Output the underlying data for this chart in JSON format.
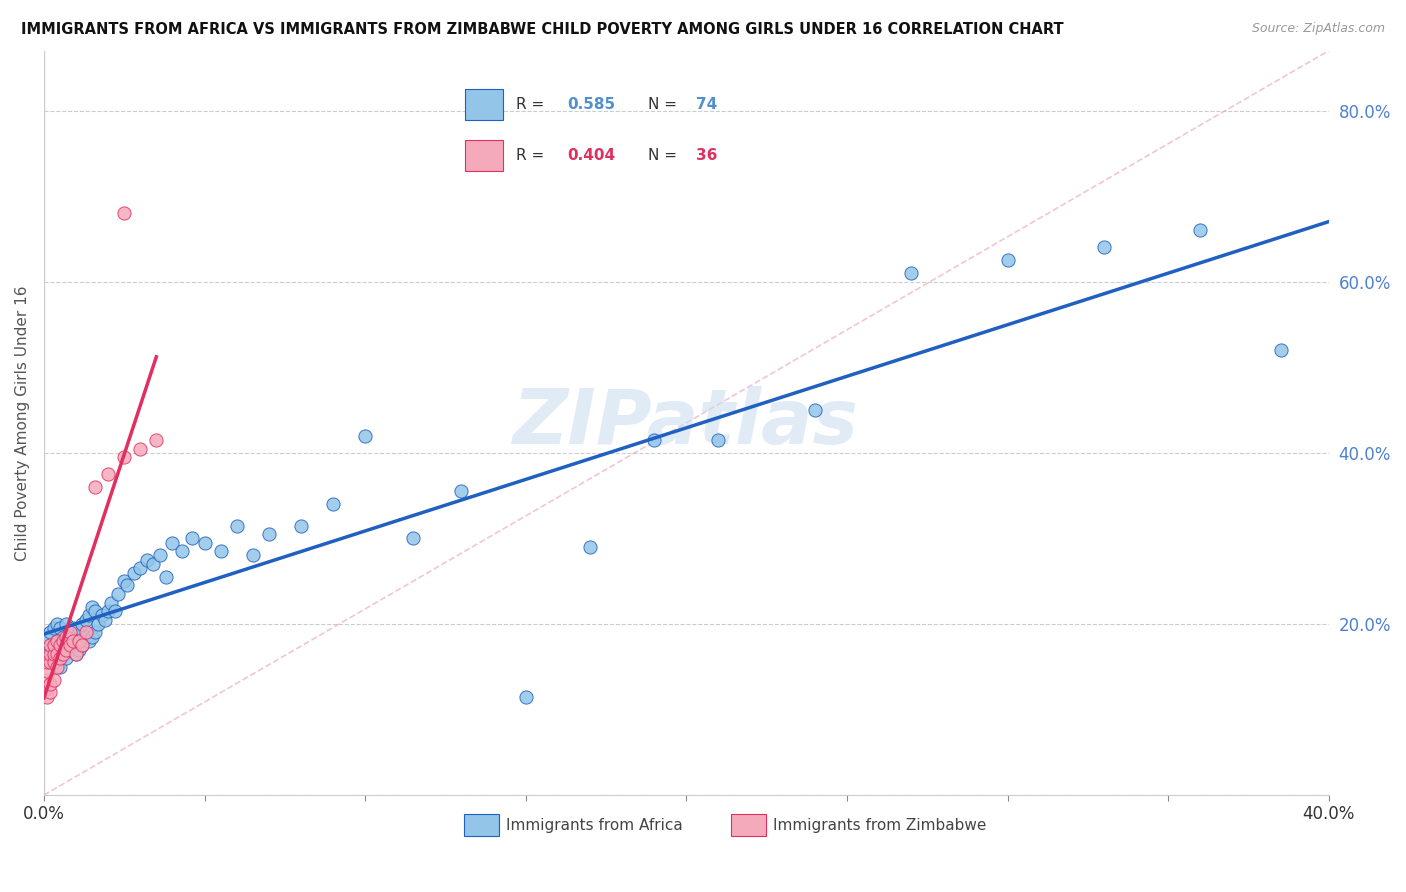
{
  "title": "IMMIGRANTS FROM AFRICA VS IMMIGRANTS FROM ZIMBABWE CHILD POVERTY AMONG GIRLS UNDER 16 CORRELATION CHART",
  "source": "Source: ZipAtlas.com",
  "ylabel": "Child Poverty Among Girls Under 16",
  "legend_labels": [
    "Immigrants from Africa",
    "Immigrants from Zimbabwe"
  ],
  "R_africa": 0.585,
  "N_africa": 74,
  "R_zimbabwe": 0.404,
  "N_zimbabwe": 36,
  "xlim": [
    0.0,
    0.4
  ],
  "ylim": [
    0.0,
    0.87
  ],
  "ytick_values": [
    0.0,
    0.2,
    0.4,
    0.6,
    0.8
  ],
  "ytick_labels": [
    "",
    "20.0%",
    "40.0%",
    "60.0%",
    "80.0%"
  ],
  "color_africa": "#92C5E8",
  "color_zimbabwe": "#F5AABB",
  "line_africa": "#2060C0",
  "line_zimbabwe": "#E03060",
  "ref_line_color": "#E8B0C0",
  "bg_color": "#FFFFFF",
  "watermark": "ZIPatlas",
  "africa_x": [
    0.001,
    0.001,
    0.002,
    0.002,
    0.003,
    0.003,
    0.003,
    0.004,
    0.004,
    0.004,
    0.005,
    0.005,
    0.005,
    0.006,
    0.006,
    0.007,
    0.007,
    0.007,
    0.008,
    0.008,
    0.009,
    0.009,
    0.01,
    0.01,
    0.011,
    0.011,
    0.012,
    0.012,
    0.013,
    0.013,
    0.014,
    0.014,
    0.015,
    0.015,
    0.016,
    0.016,
    0.017,
    0.018,
    0.019,
    0.02,
    0.021,
    0.022,
    0.023,
    0.025,
    0.026,
    0.028,
    0.03,
    0.032,
    0.034,
    0.036,
    0.038,
    0.04,
    0.043,
    0.046,
    0.05,
    0.055,
    0.06,
    0.065,
    0.07,
    0.08,
    0.09,
    0.1,
    0.115,
    0.13,
    0.15,
    0.17,
    0.19,
    0.21,
    0.24,
    0.27,
    0.3,
    0.33,
    0.36,
    0.385
  ],
  "africa_y": [
    0.165,
    0.185,
    0.17,
    0.19,
    0.155,
    0.175,
    0.195,
    0.16,
    0.18,
    0.2,
    0.15,
    0.17,
    0.195,
    0.165,
    0.185,
    0.16,
    0.175,
    0.2,
    0.17,
    0.19,
    0.175,
    0.195,
    0.165,
    0.185,
    0.17,
    0.195,
    0.175,
    0.2,
    0.185,
    0.205,
    0.18,
    0.21,
    0.185,
    0.22,
    0.19,
    0.215,
    0.2,
    0.21,
    0.205,
    0.215,
    0.225,
    0.215,
    0.235,
    0.25,
    0.245,
    0.26,
    0.265,
    0.275,
    0.27,
    0.28,
    0.255,
    0.295,
    0.285,
    0.3,
    0.295,
    0.285,
    0.315,
    0.28,
    0.305,
    0.315,
    0.34,
    0.42,
    0.3,
    0.355,
    0.115,
    0.29,
    0.415,
    0.415,
    0.45,
    0.61,
    0.625,
    0.64,
    0.66,
    0.52
  ],
  "zimbabwe_x": [
    0.001,
    0.001,
    0.001,
    0.001,
    0.001,
    0.002,
    0.002,
    0.002,
    0.002,
    0.002,
    0.003,
    0.003,
    0.003,
    0.003,
    0.004,
    0.004,
    0.004,
    0.005,
    0.005,
    0.006,
    0.006,
    0.007,
    0.007,
    0.008,
    0.008,
    0.009,
    0.01,
    0.011,
    0.012,
    0.013,
    0.016,
    0.02,
    0.025,
    0.03,
    0.035,
    0.025
  ],
  "zimbabwe_y": [
    0.115,
    0.125,
    0.135,
    0.145,
    0.155,
    0.12,
    0.13,
    0.155,
    0.165,
    0.175,
    0.135,
    0.155,
    0.165,
    0.175,
    0.15,
    0.165,
    0.18,
    0.16,
    0.175,
    0.165,
    0.18,
    0.17,
    0.185,
    0.175,
    0.19,
    0.18,
    0.165,
    0.18,
    0.175,
    0.19,
    0.36,
    0.375,
    0.395,
    0.405,
    0.415,
    0.68
  ]
}
